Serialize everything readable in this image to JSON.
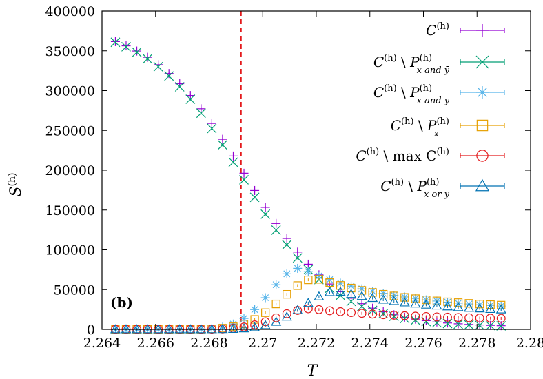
{
  "chart_data": {
    "type": "scatter",
    "panel_label": "(b)",
    "xlabel": "T",
    "ylabel": "S(h)",
    "ylabel_main": "S",
    "ylabel_sup": "(h)",
    "xlim": [
      2.264,
      2.28
    ],
    "ylim": [
      0,
      400000
    ],
    "xticks": [
      2.264,
      2.266,
      2.268,
      2.27,
      2.272,
      2.274,
      2.276,
      2.278,
      2.28
    ],
    "xtick_labels": [
      "2.264",
      "2.266",
      "2.268",
      "2.27",
      "2.272",
      "2.274",
      "2.276",
      "2.278",
      "2.28"
    ],
    "yticks": [
      0,
      50000,
      100000,
      150000,
      200000,
      250000,
      300000,
      350000,
      400000
    ],
    "ytick_labels": [
      "0",
      "50000",
      "100000",
      "150000",
      "200000",
      "250000",
      "300000",
      "350000",
      "400000"
    ],
    "vline": {
      "x": 2.26919,
      "color": "#e41a1c",
      "style": "dashed"
    },
    "x_range": {
      "start": 2.2645,
      "end": 2.279,
      "step": 0.0004
    },
    "series": [
      {
        "name": "C(h)",
        "legend_main": "C",
        "legend_sup": "(h)",
        "legend_tail": "",
        "legend_psup": "",
        "legend_psub": "",
        "marker": "plus",
        "color": "#9400d3",
        "model": {
          "kind": "sigmoid",
          "A": 384000,
          "B": 3000,
          "x0": 2.26935,
          "w": 0.00175
        }
      },
      {
        "name": "C(h) \\ P(h)x and ȳ",
        "legend_main": "C",
        "legend_sup": "(h)",
        "legend_tail": " \\ P",
        "legend_psup": "(h)",
        "legend_psub": "x and ȳ",
        "marker": "cross",
        "color": "#009e73",
        "model": {
          "kind": "sigmoid",
          "A": 384000,
          "B": 3000,
          "x0": 2.2692,
          "w": 0.00172
        }
      },
      {
        "name": "C(h) \\ P(h)x and y",
        "legend_main": "C",
        "legend_sup": "(h)",
        "legend_tail": " \\ P",
        "legend_psup": "(h)",
        "legend_psub": "x and y",
        "marker": "star",
        "color": "#56b4e9",
        "model": {
          "kind": "peak",
          "peak": 77000,
          "xc": 2.2714,
          "wl": 0.0016,
          "tail": 23000
        }
      },
      {
        "name": "C(h) \\ P(h)x",
        "legend_main": "C",
        "legend_sup": "(h)",
        "legend_tail": " \\ P",
        "legend_psup": "(h)",
        "legend_psub": "x",
        "marker": "square",
        "color": "#e69f00",
        "model": {
          "kind": "peak",
          "peak": 64000,
          "xc": 2.272,
          "wl": 0.0018,
          "tail": 25000
        }
      },
      {
        "name": "C(h) \\ max C(h)",
        "legend_main": "C",
        "legend_sup": "(h)",
        "legend_tail": " \\ max C",
        "legend_psup": "(h)",
        "legend_psub": "",
        "marker": "circle",
        "color": "#e41a1c",
        "model": {
          "kind": "peak",
          "peak": 26000,
          "xc": 2.2718,
          "wl": 0.0017,
          "tail": 12000
        }
      },
      {
        "name": "C(h) \\ P(h)x or y",
        "legend_main": "C",
        "legend_sup": "(h)",
        "legend_tail": " \\ P",
        "legend_psup": "(h)",
        "legend_psub": "x or y",
        "marker": "triangle",
        "color": "#0072b2",
        "model": {
          "kind": "peak",
          "peak": 48000,
          "xc": 2.2728,
          "wl": 0.0018,
          "tail": 20000
        }
      }
    ]
  }
}
